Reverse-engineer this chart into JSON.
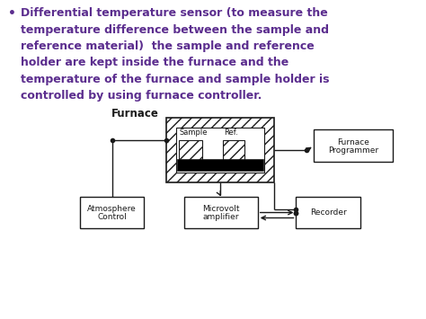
{
  "background_color": "#ffffff",
  "text_color": "#5b2d8e",
  "diagram_color": "#1a1a1a",
  "lines": [
    "Differential temperature sensor (to measure the",
    "temperature difference between the sample and",
    "reference material)  the sample and reference",
    "holder are kept inside the furnace and the",
    "temperature of the furnace and sample holder is",
    "controlled by using furnace controller."
  ],
  "text_fontsize": 9.0,
  "diagram_fontsize": 6.5,
  "furnace_label_fontsize": 8.5
}
